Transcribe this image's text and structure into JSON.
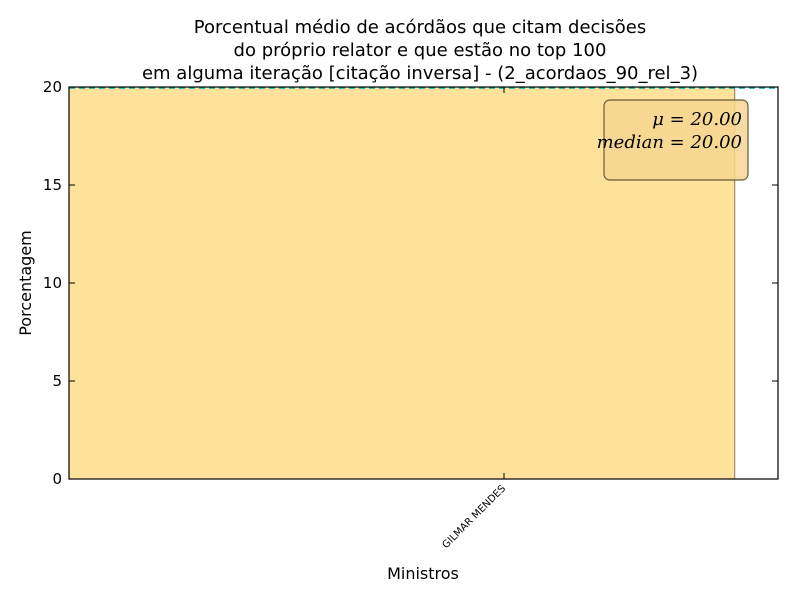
{
  "chart_data": {
    "type": "bar",
    "title_lines": [
      "Porcentual médio de acórdãos que citam decisões",
      "do próprio relator e que estão no top 100",
      "em alguma iteração [citação inversa] - (2_acordaos_90_rel_3)"
    ],
    "xlabel": "Ministros",
    "ylabel": "Porcentagem",
    "categories": [
      "GILMAR MENDES"
    ],
    "values": [
      20.0
    ],
    "ylim": [
      0,
      20
    ],
    "yticks": [
      0,
      5,
      10,
      15,
      20
    ],
    "bar_color": "#fee29b",
    "mean_line_color": "#00aaaa",
    "stats": {
      "mean_label": "μ = 20.00",
      "median_label": "median = 20.00"
    },
    "legend_placement": "top-right",
    "grid": false
  }
}
